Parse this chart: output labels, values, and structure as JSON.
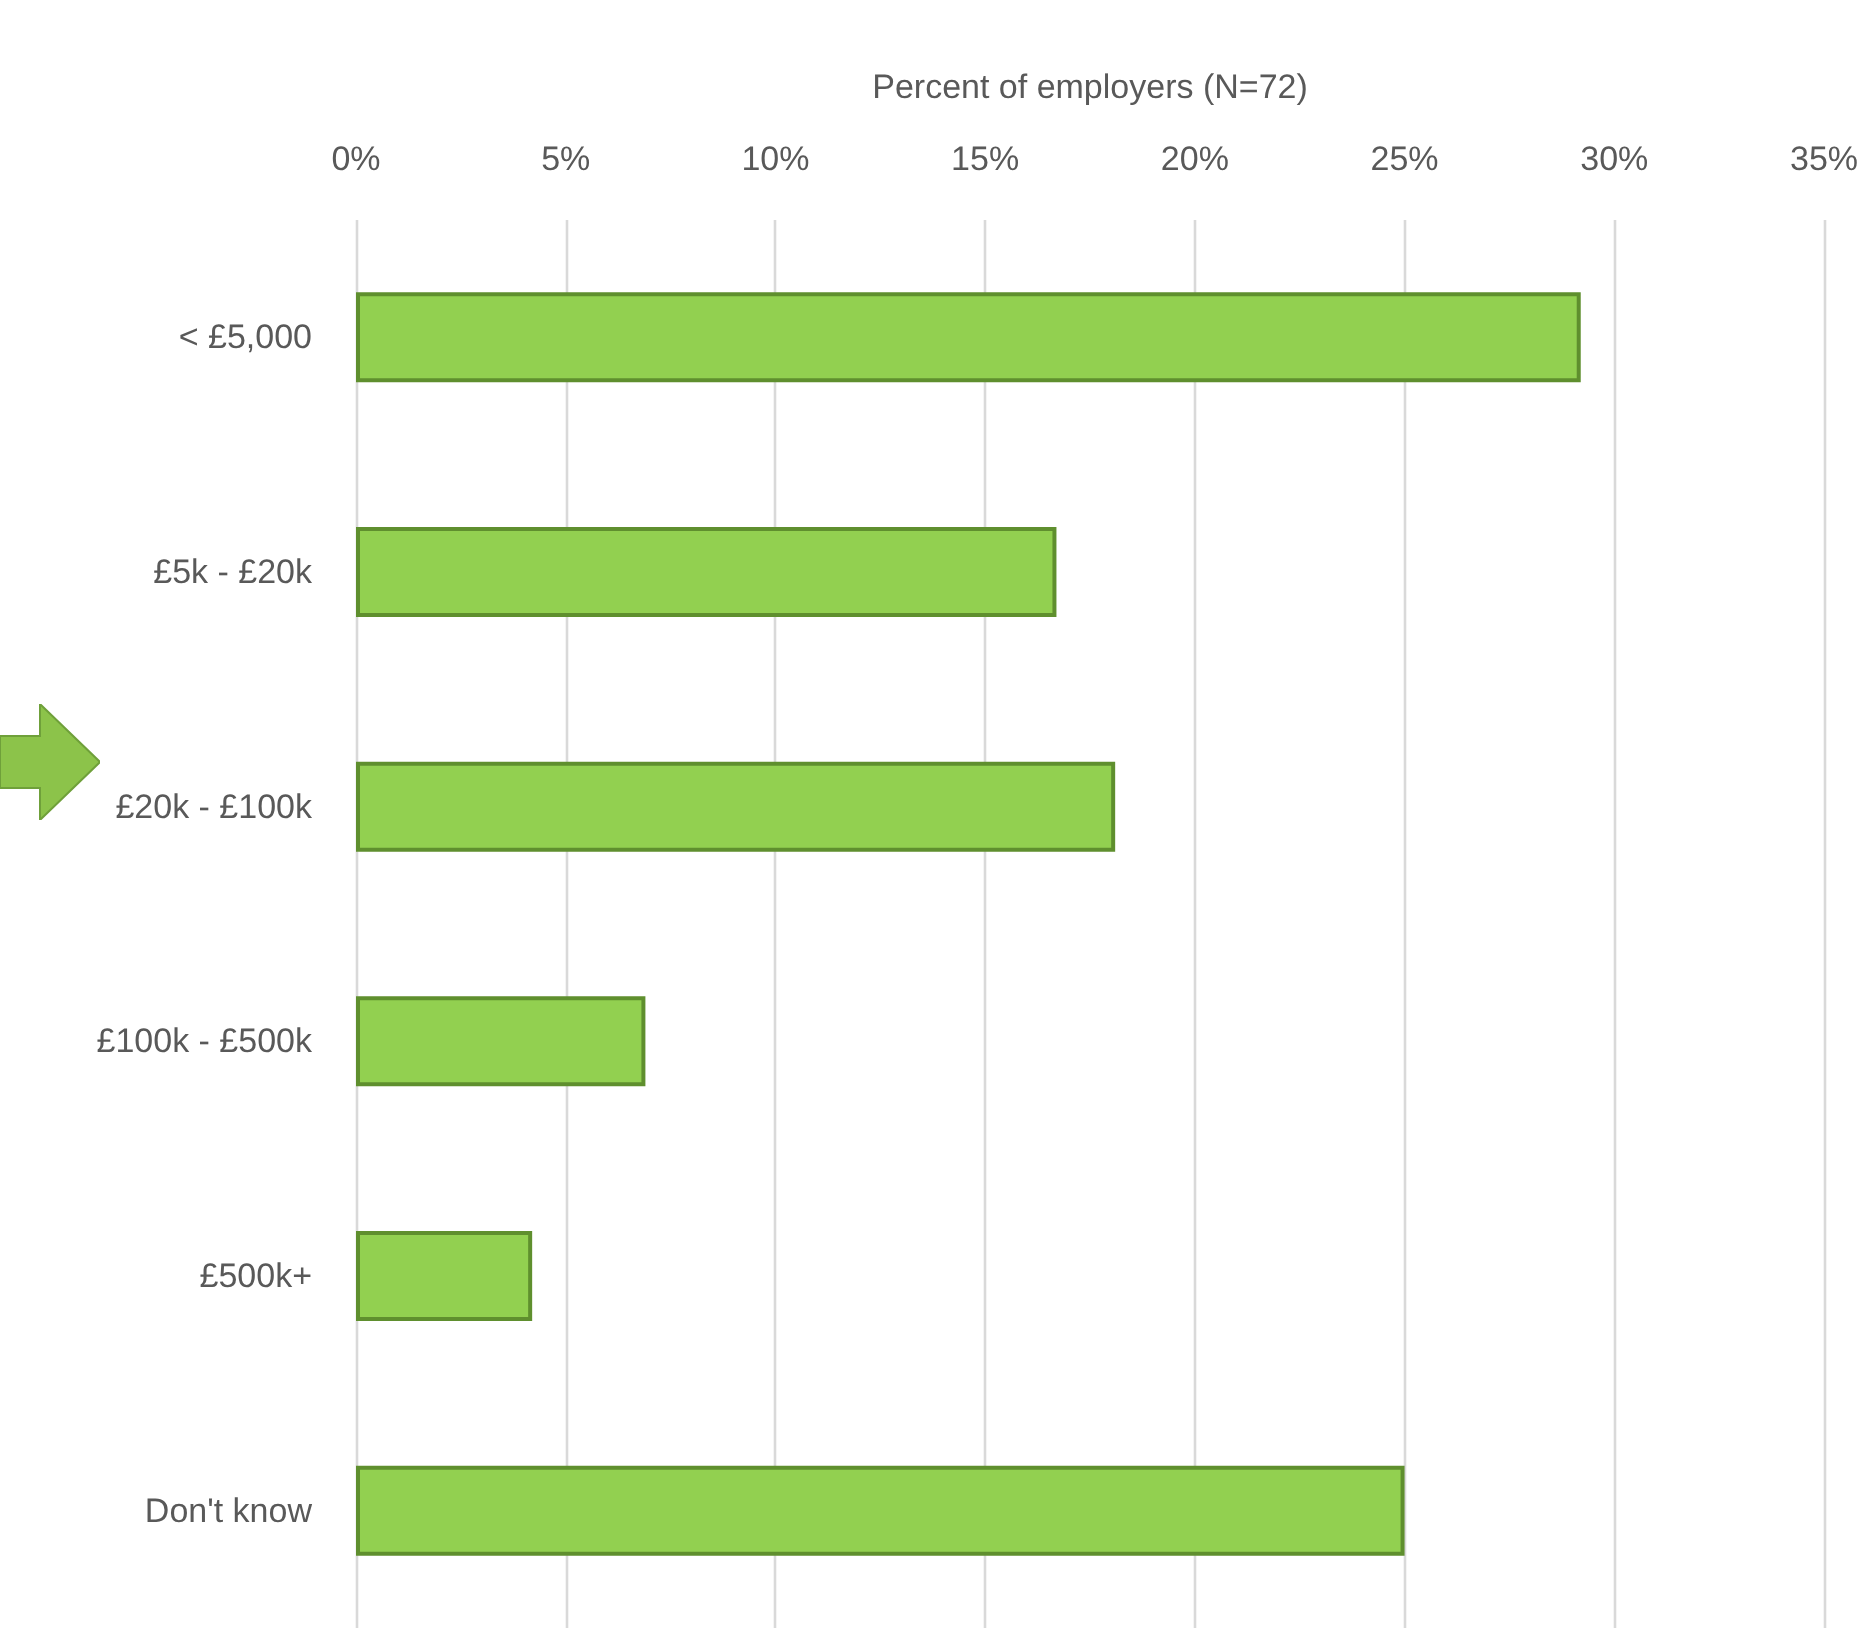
{
  "chart_data": {
    "type": "bar",
    "orientation": "horizontal",
    "xlabel": "Percent of employers (N=72)",
    "categories": [
      "< £5,000",
      "£5k - £20k",
      "£20k - £100k",
      "£100k - £500k",
      "£500k+",
      "Don't know"
    ],
    "values": [
      29.2,
      16.7,
      18.1,
      6.9,
      4.2,
      25
    ],
    "color": "#92d050",
    "xlim": [
      0,
      35
    ],
    "xticks": [
      {
        "value": 0,
        "label": "0%"
      },
      {
        "value": 5,
        "label": "5%"
      },
      {
        "value": 10,
        "label": "10%"
      },
      {
        "value": 15,
        "label": "15%"
      },
      {
        "value": 20,
        "label": "20%"
      },
      {
        "value": 25,
        "label": "25%"
      },
      {
        "value": 30,
        "label": "30%"
      },
      {
        "value": 35,
        "label": "35%"
      }
    ],
    "grid": "x"
  }
}
